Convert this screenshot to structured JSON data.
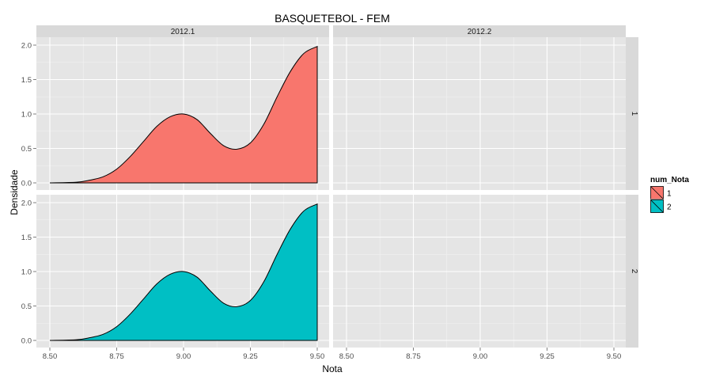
{
  "chart_data": {
    "type": "area",
    "title": "BASQUETEBOL - FEM",
    "xlabel": "Nota",
    "ylabel": "Densidade",
    "xlim": [
      8.5,
      9.5
    ],
    "ylim": [
      0,
      2.0
    ],
    "x_ticks": [
      "8.50",
      "8.75",
      "9.00",
      "9.25",
      "9.50"
    ],
    "y_ticks": [
      "0.0",
      "0.5",
      "1.0",
      "1.5",
      "2.0"
    ],
    "grid": true,
    "facet_columns": [
      "2012.1",
      "2012.2"
    ],
    "facet_rows": [
      "1",
      "2"
    ],
    "legend": {
      "title": "num_Nota",
      "position": "right",
      "entries": [
        {
          "label": "1",
          "color": "#F8766D"
        },
        {
          "label": "2",
          "color": "#00BFC4"
        }
      ]
    },
    "series": [
      {
        "name": "1",
        "facet_column": "2012.1",
        "facet_row": "1",
        "color": "#F8766D",
        "x": [
          8.5,
          8.6,
          8.65,
          8.7,
          8.75,
          8.8,
          8.85,
          8.9,
          8.95,
          9.0,
          9.05,
          9.1,
          9.15,
          9.2,
          9.25,
          9.3,
          9.35,
          9.4,
          9.45,
          9.5
        ],
        "values": [
          0.0,
          0.01,
          0.04,
          0.09,
          0.2,
          0.38,
          0.6,
          0.82,
          0.96,
          1.0,
          0.92,
          0.72,
          0.54,
          0.49,
          0.58,
          0.85,
          1.25,
          1.62,
          1.88,
          1.98
        ]
      },
      {
        "name": "2",
        "facet_column": "2012.1",
        "facet_row": "2",
        "color": "#00BFC4",
        "x": [
          8.5,
          8.6,
          8.65,
          8.7,
          8.75,
          8.8,
          8.85,
          8.9,
          8.95,
          9.0,
          9.05,
          9.1,
          9.15,
          9.2,
          9.25,
          9.3,
          9.35,
          9.4,
          9.45,
          9.5
        ],
        "values": [
          0.0,
          0.01,
          0.04,
          0.09,
          0.2,
          0.38,
          0.6,
          0.82,
          0.96,
          1.0,
          0.92,
          0.72,
          0.54,
          0.49,
          0.58,
          0.85,
          1.25,
          1.62,
          1.88,
          1.98
        ]
      }
    ]
  }
}
